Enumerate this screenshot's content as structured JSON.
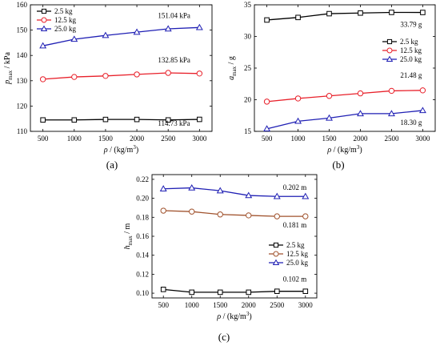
{
  "chart_data": [
    {
      "type": "line",
      "caption": "(a)",
      "ylabel": "p_max / kPa",
      "xlabel": "ρ / (kg/m³)",
      "x": [
        500,
        1000,
        1500,
        2000,
        2500,
        3000
      ],
      "xlim": [
        300,
        3200
      ],
      "ylim": [
        110,
        160
      ],
      "yticks": [
        110,
        120,
        130,
        140,
        150,
        160
      ],
      "xticks": [
        500,
        1000,
        1500,
        2000,
        2500,
        3000
      ],
      "legend": "top-left",
      "series": [
        {
          "name": "2.5 kg",
          "values": [
            114.5,
            114.5,
            114.7,
            114.7,
            114.5,
            114.73
          ],
          "color": "#000000",
          "marker": "square",
          "annotation": "114.73 kPa"
        },
        {
          "name": "12.5 kg",
          "values": [
            130.6,
            131.5,
            131.9,
            132.5,
            133.1,
            132.85
          ],
          "color": "#e8202a",
          "marker": "circle",
          "annotation": "132.85 kPa"
        },
        {
          "name": "25.0 kg",
          "values": [
            143.8,
            146.4,
            147.9,
            149.2,
            150.5,
            151.04
          ],
          "color": "#1f1fb4",
          "marker": "triangle",
          "annotation": "151.04 kPa"
        }
      ]
    },
    {
      "type": "line",
      "caption": "(b)",
      "ylabel": "a_max / g",
      "xlabel": "ρ / (kg/m³)",
      "x": [
        500,
        1000,
        1500,
        2000,
        2500,
        3000
      ],
      "xlim": [
        300,
        3200
      ],
      "ylim": [
        15,
        35
      ],
      "yticks": [
        15,
        20,
        25,
        30,
        35
      ],
      "xticks": [
        500,
        1000,
        1500,
        2000,
        2500,
        3000
      ],
      "legend": "right",
      "series": [
        {
          "name": "2.5 kg",
          "values": [
            32.6,
            33.0,
            33.6,
            33.7,
            33.8,
            33.79
          ],
          "color": "#000000",
          "marker": "square",
          "annotation": "33.79 g"
        },
        {
          "name": "12.5 kg",
          "values": [
            19.7,
            20.2,
            20.6,
            21.0,
            21.4,
            21.48
          ],
          "color": "#e8202a",
          "marker": "circle",
          "annotation": "21.48 g"
        },
        {
          "name": "25.0 kg",
          "values": [
            15.4,
            16.6,
            17.1,
            17.8,
            17.8,
            18.3
          ],
          "color": "#1f1fb4",
          "marker": "triangle",
          "annotation": "18.30 g"
        }
      ]
    },
    {
      "type": "line",
      "caption": "(c)",
      "ylabel": "h_max / m",
      "xlabel": "ρ / (kg/m³)",
      "x": [
        500,
        1000,
        1500,
        2000,
        2500,
        3000
      ],
      "xlim": [
        300,
        3200
      ],
      "ylim": [
        0.095,
        0.225
      ],
      "yticks": [
        0.1,
        0.12,
        0.14,
        0.16,
        0.18,
        0.2,
        0.22
      ],
      "xticks": [
        500,
        1000,
        1500,
        2000,
        2500,
        3000
      ],
      "legend": "right",
      "series": [
        {
          "name": "2.5 kg",
          "values": [
            0.104,
            0.101,
            0.101,
            0.101,
            0.102,
            0.102
          ],
          "color": "#000000",
          "marker": "square",
          "annotation": "0.102 m"
        },
        {
          "name": "12.5 kg",
          "values": [
            0.187,
            0.186,
            0.183,
            0.182,
            0.181,
            0.181
          ],
          "color": "#a0522d",
          "marker": "circle",
          "annotation": "0.181 m"
        },
        {
          "name": "25.0 kg",
          "values": [
            0.21,
            0.211,
            0.208,
            0.203,
            0.202,
            0.202
          ],
          "color": "#1f1fb4",
          "marker": "triangle",
          "annotation": "0.202 m"
        }
      ]
    }
  ]
}
